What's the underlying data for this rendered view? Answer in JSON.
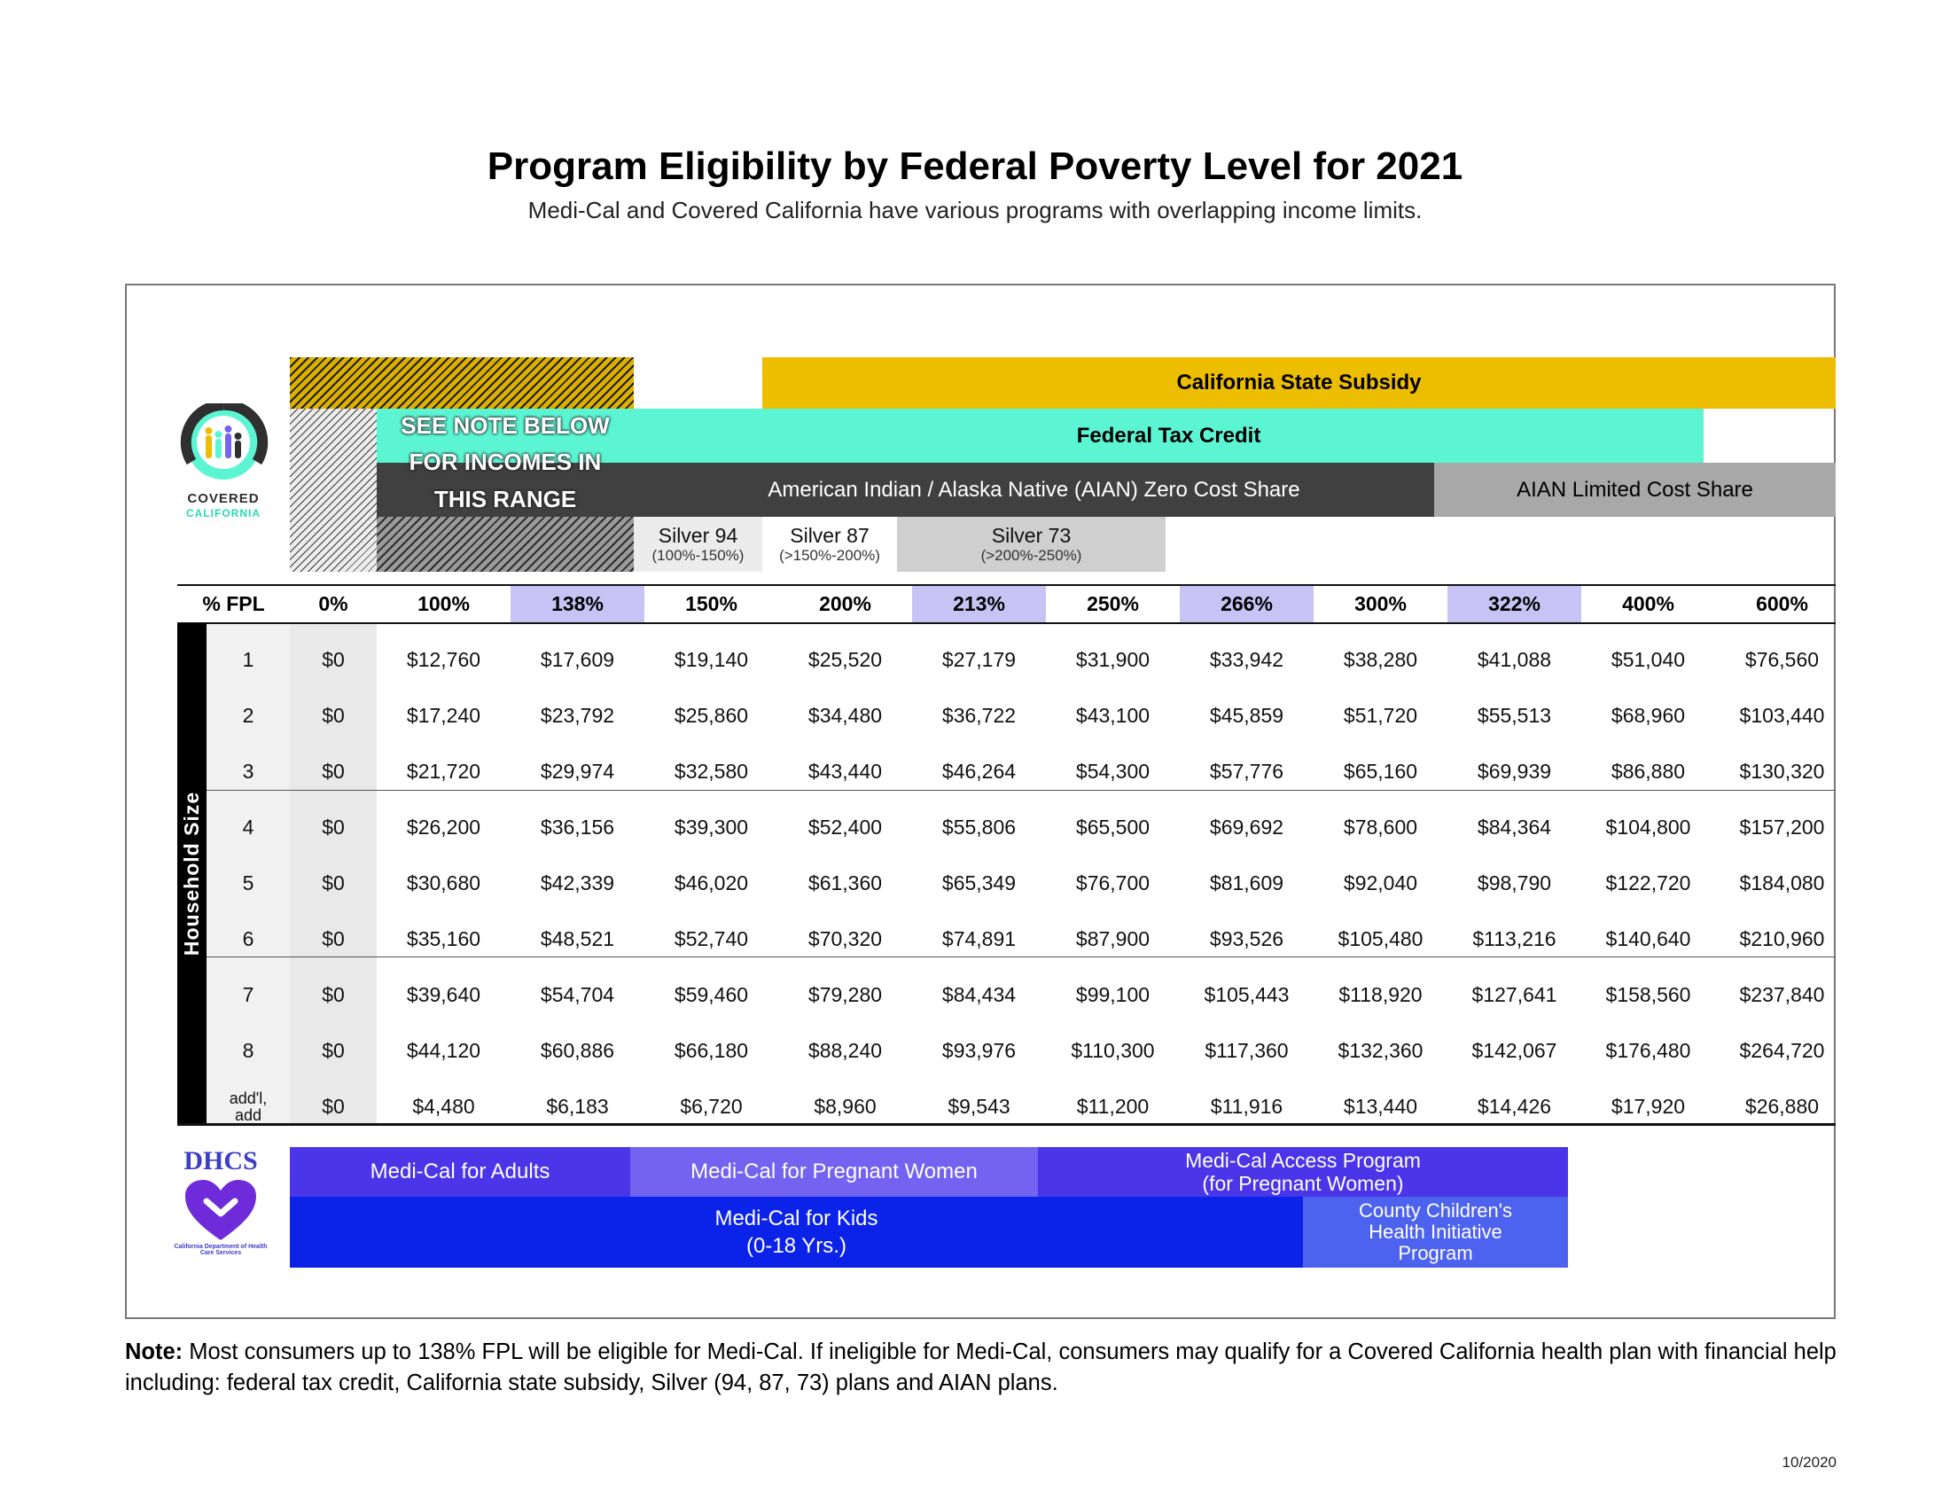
{
  "header": {
    "title": "Program Eligibility by Federal Poverty Level for 2021",
    "subtitle": "Medi-Cal and Covered California have various programs with overlapping income limits."
  },
  "logos": {
    "covered_california": {
      "line1": "COVERED",
      "line2": "CALIFORNIA"
    },
    "dhcs": {
      "name": "DHCS",
      "tagline": "California Department of Health Care Services"
    }
  },
  "programs": {
    "see_note": "SEE NOTE BELOW\nFOR INCOMES IN\nTHIS RANGE",
    "state_subsidy": "California State Subsidy",
    "federal_tax_credit": "Federal Tax Credit",
    "aian_zero": "American Indian / Alaska Native (AIAN) Zero Cost Share",
    "aian_limited": "AIAN Limited Cost Share",
    "silver94": {
      "name": "Silver 94",
      "range": "(100%-150%)"
    },
    "silver87": {
      "name": "Silver 87",
      "range": "(>150%-200%)"
    },
    "silver73": {
      "name": "Silver 73",
      "range": "(>200%-250%)"
    }
  },
  "table": {
    "fpl_header": "% FPL",
    "household_label": "Household Size",
    "columns": [
      "0%",
      "100%",
      "138%",
      "150%",
      "200%",
      "213%",
      "250%",
      "266%",
      "300%",
      "322%",
      "400%",
      "600%"
    ],
    "rows": [
      {
        "size": "1",
        "values": [
          "$0",
          "$12,760",
          "$17,609",
          "$19,140",
          "$25,520",
          "$27,179",
          "$31,900",
          "$33,942",
          "$38,280",
          "$41,088",
          "$51,040",
          "$76,560"
        ]
      },
      {
        "size": "2",
        "values": [
          "$0",
          "$17,240",
          "$23,792",
          "$25,860",
          "$34,480",
          "$36,722",
          "$43,100",
          "$45,859",
          "$51,720",
          "$55,513",
          "$68,960",
          "$103,440"
        ]
      },
      {
        "size": "3",
        "values": [
          "$0",
          "$21,720",
          "$29,974",
          "$32,580",
          "$43,440",
          "$46,264",
          "$54,300",
          "$57,776",
          "$65,160",
          "$69,939",
          "$86,880",
          "$130,320"
        ]
      },
      {
        "size": "4",
        "values": [
          "$0",
          "$26,200",
          "$36,156",
          "$39,300",
          "$52,400",
          "$55,806",
          "$65,500",
          "$69,692",
          "$78,600",
          "$84,364",
          "$104,800",
          "$157,200"
        ]
      },
      {
        "size": "5",
        "values": [
          "$0",
          "$30,680",
          "$42,339",
          "$46,020",
          "$61,360",
          "$65,349",
          "$76,700",
          "$81,609",
          "$92,040",
          "$98,790",
          "$122,720",
          "$184,080"
        ]
      },
      {
        "size": "6",
        "values": [
          "$0",
          "$35,160",
          "$48,521",
          "$52,740",
          "$70,320",
          "$74,891",
          "$87,900",
          "$93,526",
          "$105,480",
          "$113,216",
          "$140,640",
          "$210,960"
        ]
      },
      {
        "size": "7",
        "values": [
          "$0",
          "$39,640",
          "$54,704",
          "$59,460",
          "$79,280",
          "$84,434",
          "$99,100",
          "$105,443",
          "$118,920",
          "$127,641",
          "$158,560",
          "$237,840"
        ]
      },
      {
        "size": "8",
        "values": [
          "$0",
          "$44,120",
          "$60,886",
          "$66,180",
          "$88,240",
          "$93,976",
          "$110,300",
          "$117,360",
          "$132,360",
          "$142,067",
          "$176,480",
          "$264,720"
        ]
      },
      {
        "size": "add'l,\nadd",
        "values": [
          "$0",
          "$4,480",
          "$6,183",
          "$6,720",
          "$8,960",
          "$9,543",
          "$11,200",
          "$11,916",
          "$13,440",
          "$14,426",
          "$17,920",
          "$26,880"
        ]
      }
    ]
  },
  "medical": {
    "adults": "Medi-Cal for Adults",
    "pregnant": "Medi-Cal for Pregnant Women",
    "access_program": "Medi-Cal Access Program\n(for Pregnant Women)",
    "kids": "Medi-Cal for Kids\n(0-18 Yrs.)",
    "county_children": "County Children's\nHealth Initiative\nProgram"
  },
  "note": {
    "label": "Note:",
    "text": " Most consumers up to 138% FPL will be eligible for Medi-Cal. If ineligible for Medi-Cal, consumers may qualify for a Covered California health plan with financial help including: federal tax credit, California state subsidy, Silver (94, 87, 73) plans and AIAN plans."
  },
  "date": "10/2020",
  "colors": {
    "state_subsidy": "#edbd00",
    "federal_tax_credit": "#5cf5d3",
    "aian_zero": "#404040",
    "aian_limited": "#a8a8a8",
    "highlight_col": "#c8c3f5",
    "medi_adults": "#4a35e9",
    "medi_pregnant": "#7462f0",
    "medi_kids": "#0b23e8",
    "county": "#4d62ee"
  }
}
